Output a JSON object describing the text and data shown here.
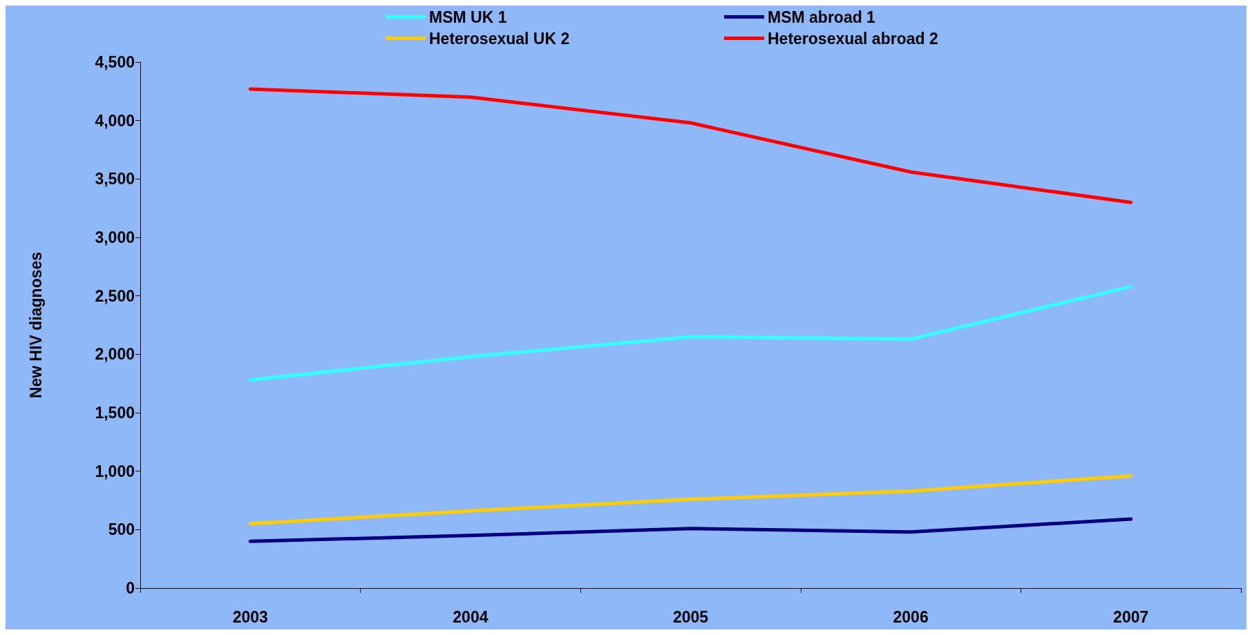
{
  "chart_data": {
    "type": "line",
    "ylabel": "New HIV diagnoses",
    "categories": [
      "2003",
      "2004",
      "2005",
      "2006",
      "2007"
    ],
    "series": [
      {
        "name": "MSM UK 1",
        "color": "#33ffff",
        "values": [
          1780,
          1980,
          2150,
          2130,
          2580
        ]
      },
      {
        "name": "MSM abroad 1",
        "color": "#000080",
        "values": [
          400,
          450,
          510,
          480,
          590
        ]
      },
      {
        "name": "Heterosexual UK 2",
        "color": "#ffcc00",
        "values": [
          550,
          660,
          760,
          830,
          960
        ]
      },
      {
        "name": "Heterosexual abroad 2",
        "color": "#ff0000",
        "values": [
          4270,
          4200,
          3980,
          3560,
          3300
        ]
      }
    ],
    "ylim": [
      0,
      4500
    ],
    "yticks": [
      {
        "value": 0,
        "label": "0"
      },
      {
        "value": 500,
        "label": "500"
      },
      {
        "value": 1000,
        "label": "1,000"
      },
      {
        "value": 1500,
        "label": "1,500"
      },
      {
        "value": 2000,
        "label": "2,000"
      },
      {
        "value": 2500,
        "label": "2,500"
      },
      {
        "value": 3000,
        "label": "3,000"
      },
      {
        "value": 3500,
        "label": "3,500"
      },
      {
        "value": 4000,
        "label": "4,000"
      },
      {
        "value": 4500,
        "label": "4,500"
      }
    ],
    "grid": false,
    "legend": "top",
    "marker": "none",
    "line_style": "solid"
  }
}
